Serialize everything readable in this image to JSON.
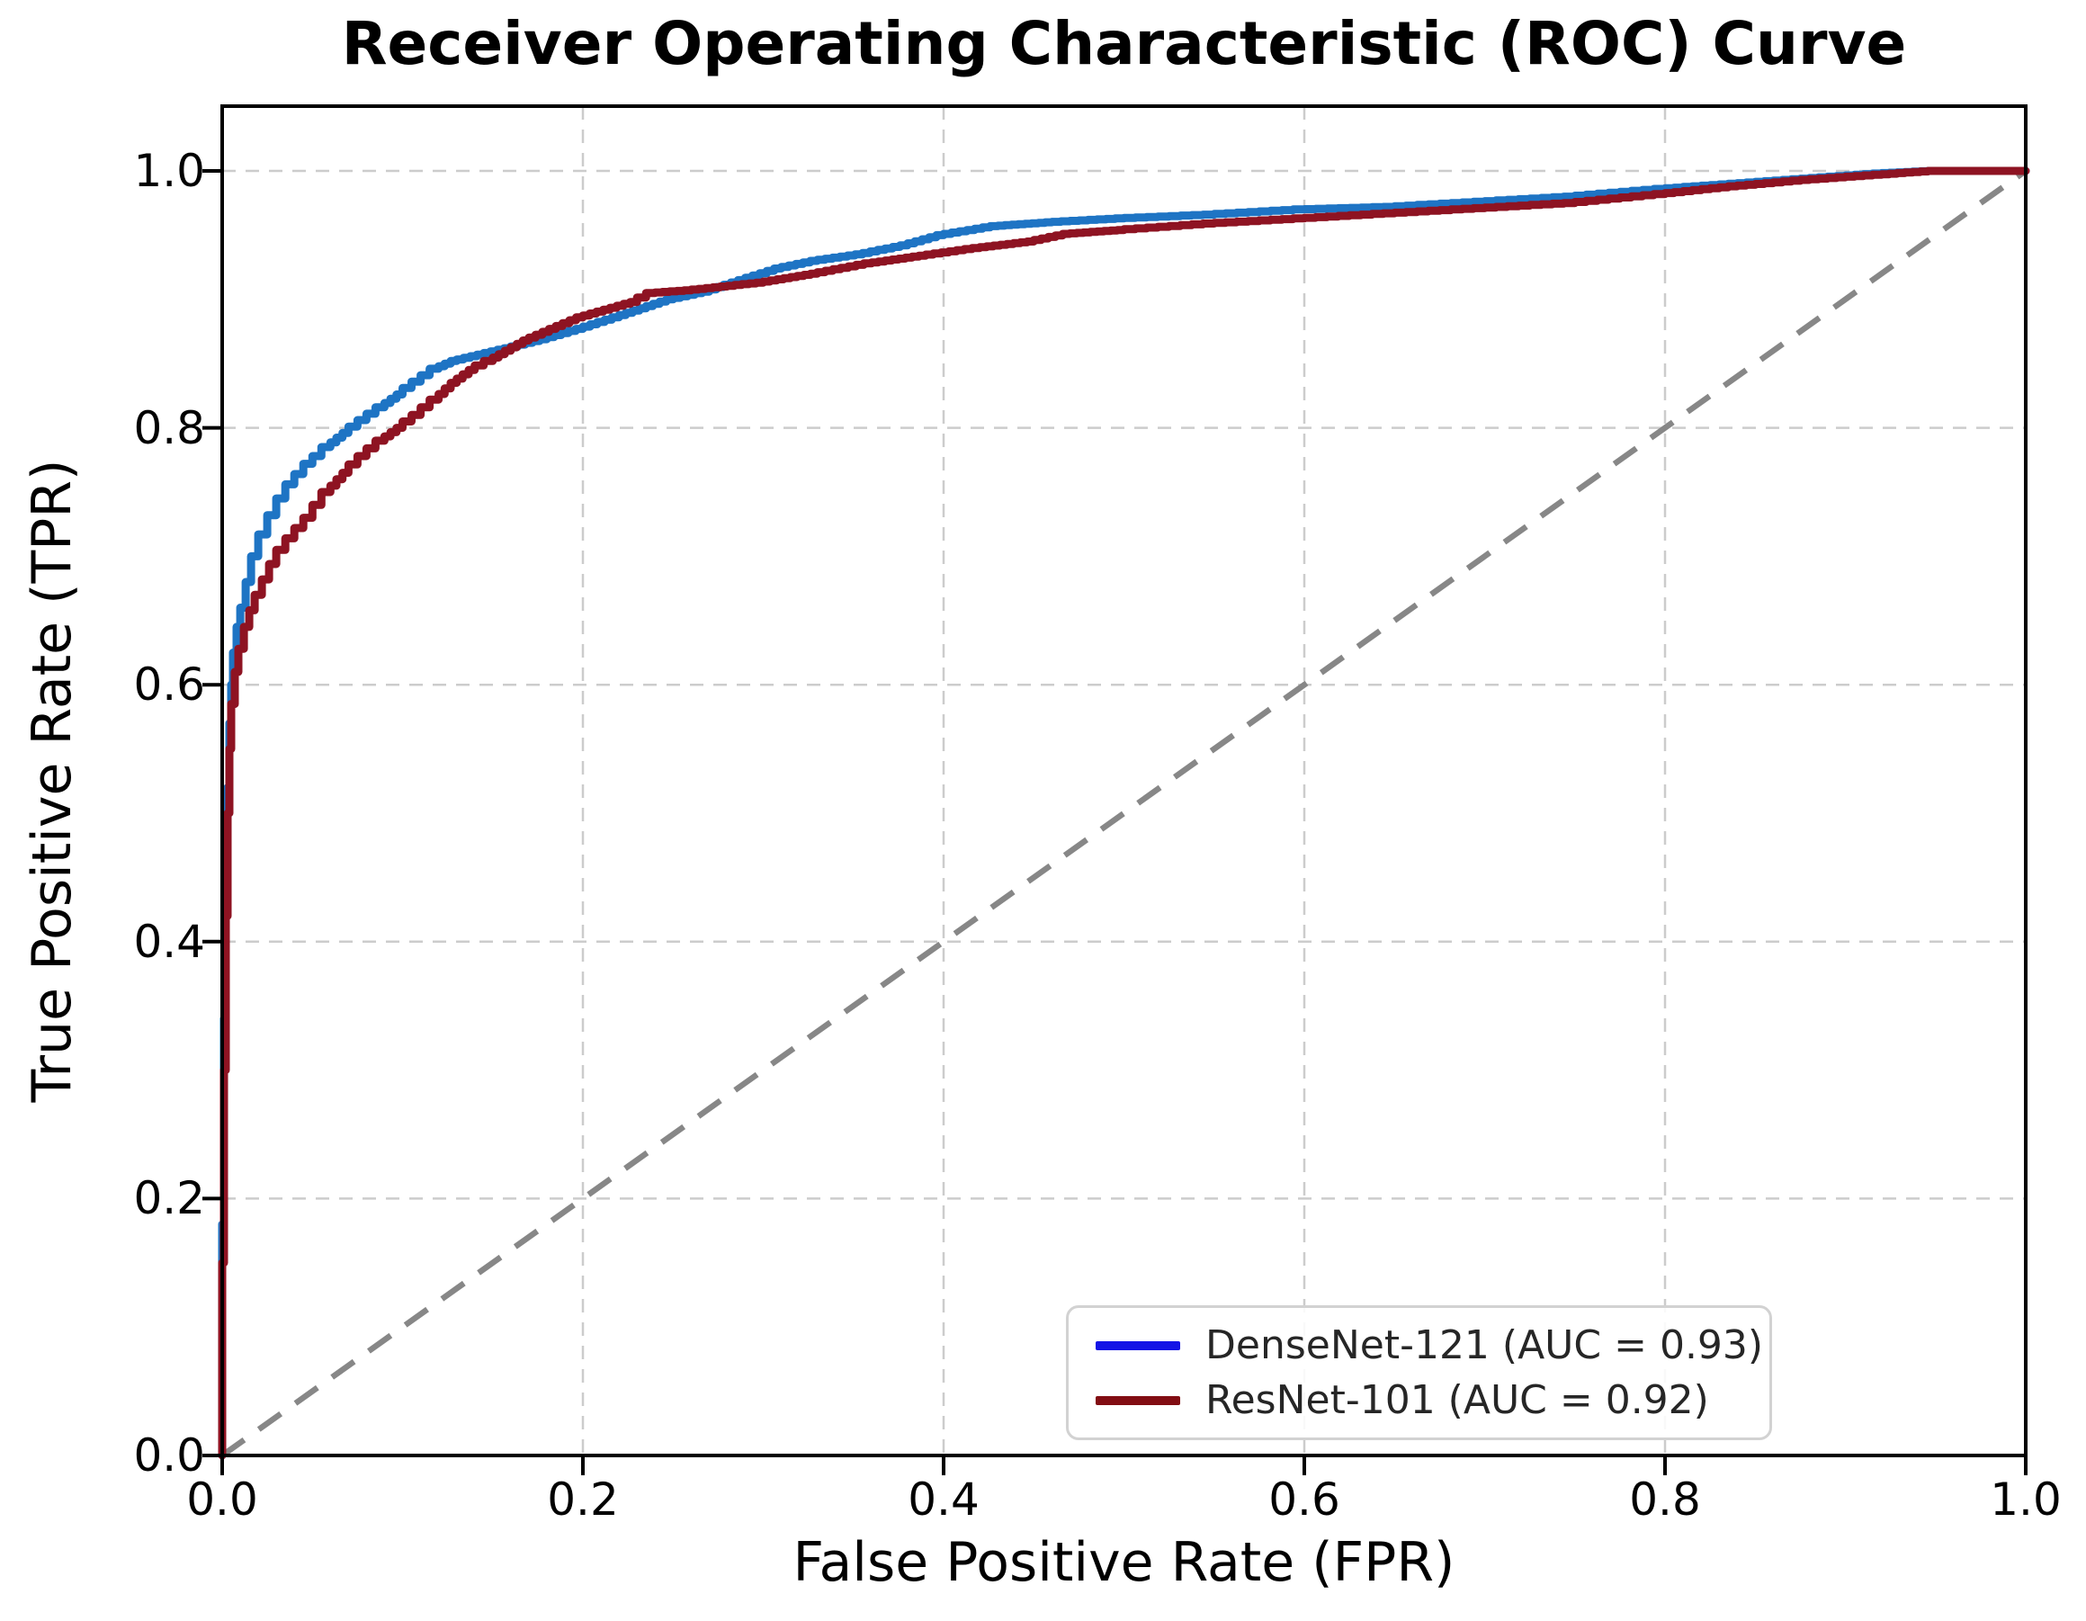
{
  "chart_data": {
    "type": "line",
    "subtype": "roc-step-curves",
    "title": "Receiver Operating Characteristic (ROC) Curve",
    "xlabel": "False Positive Rate (FPR)",
    "ylabel": "True Positive Rate (TPR)",
    "xlim": [
      0.0,
      1.0
    ],
    "ylim": [
      0.0,
      1.05
    ],
    "grid": true,
    "grid_style": "dashed",
    "grid_color": "#cccccc",
    "axis_color": "#000000",
    "legend_position": "lower right",
    "xticks": [
      0.0,
      0.2,
      0.4,
      0.6,
      0.8,
      1.0
    ],
    "yticks": [
      0.0,
      0.2,
      0.4,
      0.6,
      0.8,
      1.0
    ],
    "xtick_labels": [
      "0.0",
      "0.2",
      "0.4",
      "0.6",
      "0.8",
      "1.0"
    ],
    "ytick_labels": [
      "0.0",
      "0.2",
      "0.4",
      "0.6",
      "0.8",
      "1.0"
    ],
    "series": [
      {
        "name": "DenseNet-121 (AUC = 0.93)",
        "model": "DenseNet-121",
        "auc": 0.93,
        "color": "#1e74c4",
        "legend_color": "#1414e6",
        "line_style": "step",
        "points": [
          [
            0.0,
            0.0
          ],
          [
            0.001,
            0.18
          ],
          [
            0.002,
            0.34
          ],
          [
            0.003,
            0.45
          ],
          [
            0.004,
            0.52
          ],
          [
            0.005,
            0.57
          ],
          [
            0.006,
            0.6
          ],
          [
            0.008,
            0.625
          ],
          [
            0.01,
            0.645
          ],
          [
            0.013,
            0.66
          ],
          [
            0.016,
            0.68
          ],
          [
            0.02,
            0.7
          ],
          [
            0.025,
            0.717
          ],
          [
            0.03,
            0.732
          ],
          [
            0.035,
            0.745
          ],
          [
            0.04,
            0.756
          ],
          [
            0.045,
            0.764
          ],
          [
            0.05,
            0.772
          ],
          [
            0.055,
            0.778
          ],
          [
            0.06,
            0.785
          ],
          [
            0.07,
            0.796
          ],
          [
            0.08,
            0.806
          ],
          [
            0.09,
            0.816
          ],
          [
            0.1,
            0.826
          ],
          [
            0.11,
            0.836
          ],
          [
            0.12,
            0.846
          ],
          [
            0.13,
            0.852
          ],
          [
            0.145,
            0.857
          ],
          [
            0.16,
            0.862
          ],
          [
            0.18,
            0.869
          ],
          [
            0.2,
            0.877
          ],
          [
            0.22,
            0.886
          ],
          [
            0.235,
            0.893
          ],
          [
            0.25,
            0.9
          ],
          [
            0.27,
            0.906
          ],
          [
            0.29,
            0.915
          ],
          [
            0.31,
            0.924
          ],
          [
            0.33,
            0.93
          ],
          [
            0.355,
            0.935
          ],
          [
            0.38,
            0.942
          ],
          [
            0.4,
            0.95
          ],
          [
            0.43,
            0.957
          ],
          [
            0.46,
            0.96
          ],
          [
            0.5,
            0.963
          ],
          [
            0.55,
            0.966
          ],
          [
            0.6,
            0.97
          ],
          [
            0.65,
            0.972
          ],
          [
            0.7,
            0.976
          ],
          [
            0.75,
            0.98
          ],
          [
            0.8,
            0.986
          ],
          [
            0.84,
            0.99
          ],
          [
            0.88,
            0.994
          ],
          [
            0.92,
            0.998
          ],
          [
            0.95,
            1.0
          ],
          [
            1.0,
            1.0
          ]
        ]
      },
      {
        "name": "ResNet-101 (AUC = 0.92)",
        "model": "ResNet-101",
        "auc": 0.92,
        "color": "#8e1322",
        "legend_color": "#820d13",
        "line_style": "step",
        "points": [
          [
            0.0,
            0.0
          ],
          [
            0.001,
            0.15
          ],
          [
            0.002,
            0.3
          ],
          [
            0.003,
            0.42
          ],
          [
            0.004,
            0.5
          ],
          [
            0.005,
            0.55
          ],
          [
            0.007,
            0.585
          ],
          [
            0.009,
            0.61
          ],
          [
            0.012,
            0.628
          ],
          [
            0.015,
            0.645
          ],
          [
            0.018,
            0.658
          ],
          [
            0.022,
            0.67
          ],
          [
            0.026,
            0.682
          ],
          [
            0.03,
            0.694
          ],
          [
            0.035,
            0.705
          ],
          [
            0.04,
            0.714
          ],
          [
            0.045,
            0.722
          ],
          [
            0.05,
            0.73
          ],
          [
            0.06,
            0.75
          ],
          [
            0.07,
            0.765
          ],
          [
            0.08,
            0.778
          ],
          [
            0.09,
            0.79
          ],
          [
            0.1,
            0.8
          ],
          [
            0.11,
            0.81
          ],
          [
            0.12,
            0.822
          ],
          [
            0.13,
            0.835
          ],
          [
            0.14,
            0.845
          ],
          [
            0.15,
            0.852
          ],
          [
            0.16,
            0.86
          ],
          [
            0.17,
            0.868
          ],
          [
            0.185,
            0.877
          ],
          [
            0.2,
            0.886
          ],
          [
            0.215,
            0.892
          ],
          [
            0.23,
            0.898
          ],
          [
            0.24,
            0.905
          ],
          [
            0.26,
            0.907
          ],
          [
            0.28,
            0.91
          ],
          [
            0.3,
            0.913
          ],
          [
            0.33,
            0.92
          ],
          [
            0.36,
            0.928
          ],
          [
            0.39,
            0.934
          ],
          [
            0.42,
            0.94
          ],
          [
            0.45,
            0.945
          ],
          [
            0.47,
            0.951
          ],
          [
            0.5,
            0.954
          ],
          [
            0.55,
            0.959
          ],
          [
            0.6,
            0.963
          ],
          [
            0.65,
            0.967
          ],
          [
            0.7,
            0.971
          ],
          [
            0.75,
            0.975
          ],
          [
            0.8,
            0.982
          ],
          [
            0.84,
            0.988
          ],
          [
            0.88,
            0.993
          ],
          [
            0.92,
            0.997
          ],
          [
            0.95,
            1.0
          ],
          [
            1.0,
            1.0
          ]
        ]
      }
    ],
    "reference_line": {
      "name": "chance-diagonal",
      "color": "#878787",
      "line_style": "dashed",
      "points": [
        [
          0.0,
          0.0
        ],
        [
          1.0,
          1.0
        ]
      ]
    }
  }
}
